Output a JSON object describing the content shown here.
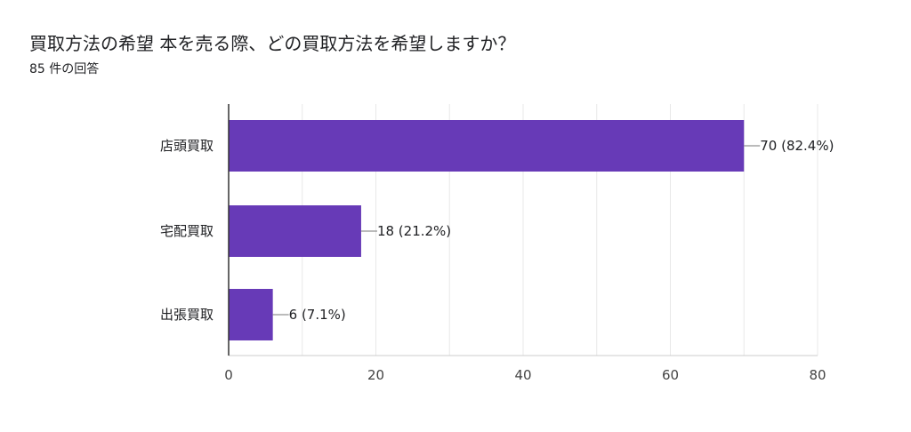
{
  "form": {
    "title": "買取方法の希望 本を売る際、どの買取方法を希望しますか？",
    "response_count": "85 件の回答"
  },
  "colors": {
    "bar": "#673ab7",
    "grid": "#e8e8e8",
    "axis": "#333333"
  },
  "chart_data": {
    "type": "bar",
    "orientation": "horizontal",
    "categories": [
      "店頭買取",
      "宅配買取",
      "出張買取"
    ],
    "values": [
      70,
      18,
      6
    ],
    "data_labels": [
      "70 (82.4%)",
      "18 (21.2%)",
      "6 (7.1%)"
    ],
    "x_ticks": [
      "0",
      "20",
      "40",
      "60",
      "80"
    ],
    "xlim": [
      0,
      80
    ],
    "grid": true,
    "legend": "none",
    "xlabel": "",
    "ylabel": ""
  }
}
